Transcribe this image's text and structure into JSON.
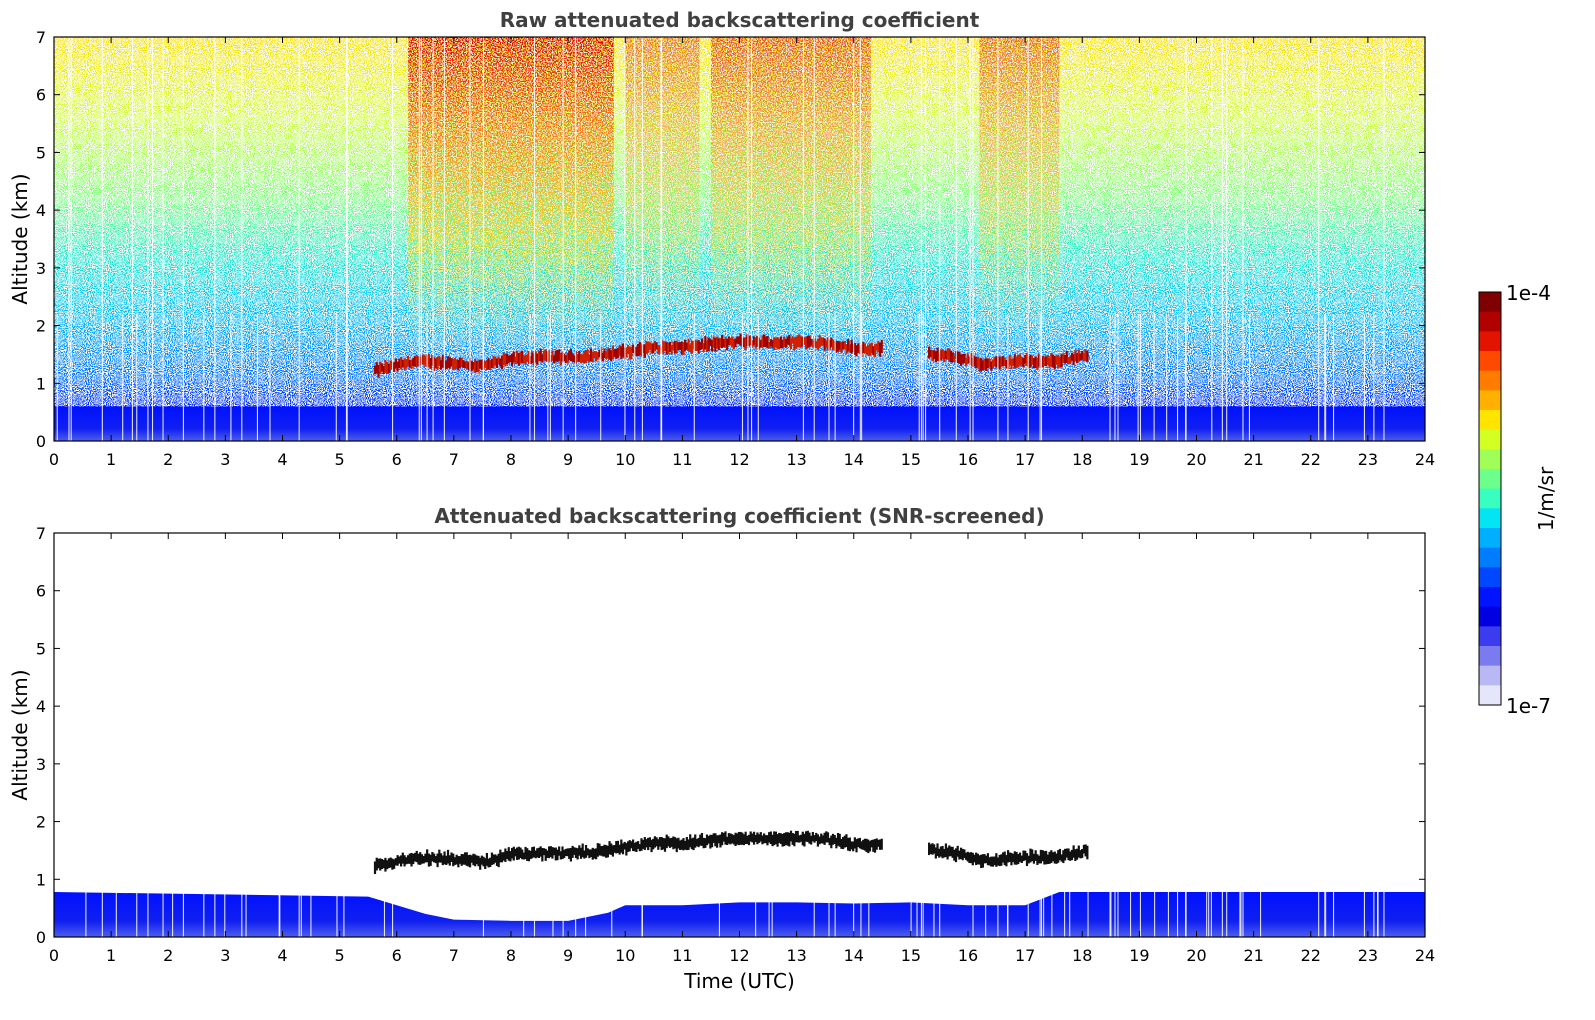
{
  "chart_data": [
    {
      "type": "heatmap",
      "title": "Raw attenuated backscattering coefficient",
      "xlabel": "",
      "ylabel": "Altitude (km)",
      "xlim": [
        0,
        24
      ],
      "ylim": [
        0,
        7
      ],
      "xticks": [
        "0",
        "1",
        "2",
        "3",
        "4",
        "5",
        "6",
        "7",
        "8",
        "9",
        "10",
        "11",
        "12",
        "13",
        "14",
        "15",
        "16",
        "17",
        "18",
        "19",
        "20",
        "21",
        "22",
        "23",
        "24"
      ],
      "yticks": [
        "0",
        "1",
        "2",
        "3",
        "4",
        "5",
        "6",
        "7"
      ],
      "colorscale": "jet",
      "features": {
        "boundary_layer_top_km": 0.6,
        "cloud_layer": {
          "time_utc": [
            5.6,
            6.3,
            7.0,
            7.5,
            8.0,
            8.5,
            9.0,
            9.5,
            10.0,
            10.5,
            11.0,
            11.5,
            12.0,
            12.5,
            13.0,
            13.5,
            14.0,
            14.5,
            15.3,
            15.8,
            16.3,
            16.8,
            17.5,
            18.1
          ],
          "altitude_km": [
            1.22,
            1.38,
            1.35,
            1.3,
            1.42,
            1.45,
            1.45,
            1.48,
            1.55,
            1.62,
            1.62,
            1.68,
            1.72,
            1.7,
            1.72,
            1.7,
            1.6,
            1.6,
            1.5,
            1.45,
            1.32,
            1.38,
            1.38,
            1.5
          ]
        }
      }
    },
    {
      "type": "heatmap",
      "title": "Attenuated backscattering coefficient (SNR-screened)",
      "xlabel": "Time (UTC)",
      "ylabel": "Altitude (km)",
      "xlim": [
        0,
        24
      ],
      "ylim": [
        0,
        7
      ],
      "xticks": [
        "0",
        "1",
        "2",
        "3",
        "4",
        "5",
        "6",
        "7",
        "8",
        "9",
        "10",
        "11",
        "12",
        "13",
        "14",
        "15",
        "16",
        "17",
        "18",
        "19",
        "20",
        "21",
        "22",
        "23",
        "24"
      ],
      "yticks": [
        "0",
        "1",
        "2",
        "3",
        "4",
        "5",
        "6",
        "7"
      ],
      "colorscale": "jet",
      "features": {
        "boundary_layer": {
          "time_utc": [
            0,
            5.5,
            6.0,
            6.5,
            7.0,
            8.0,
            9.0,
            9.7,
            10.0,
            11.0,
            12.0,
            13.0,
            14.0,
            15.0,
            16.0,
            17.0,
            17.6,
            18.0,
            24
          ],
          "top_km": [
            0.78,
            0.7,
            0.55,
            0.4,
            0.3,
            0.28,
            0.28,
            0.42,
            0.55,
            0.55,
            0.6,
            0.6,
            0.58,
            0.6,
            0.55,
            0.55,
            0.78,
            0.78,
            0.78
          ]
        },
        "cloud_layer_black": true
      }
    }
  ],
  "colorbar": {
    "max_label": "1e-4",
    "min_label": "1e-7",
    "label": "1/m/sr",
    "colors": [
      "#7f0000",
      "#b00000",
      "#e21400",
      "#ff4800",
      "#ff7c00",
      "#ffb000",
      "#ffe400",
      "#d4ff23",
      "#a0ff57",
      "#6cff8b",
      "#38ffbf",
      "#04e4f3",
      "#00b0ff",
      "#007cff",
      "#0048ff",
      "#0014ff",
      "#0000e0",
      "#3b3bf0",
      "#7b7bf0",
      "#b8b8f4",
      "#e6e6fa"
    ]
  }
}
